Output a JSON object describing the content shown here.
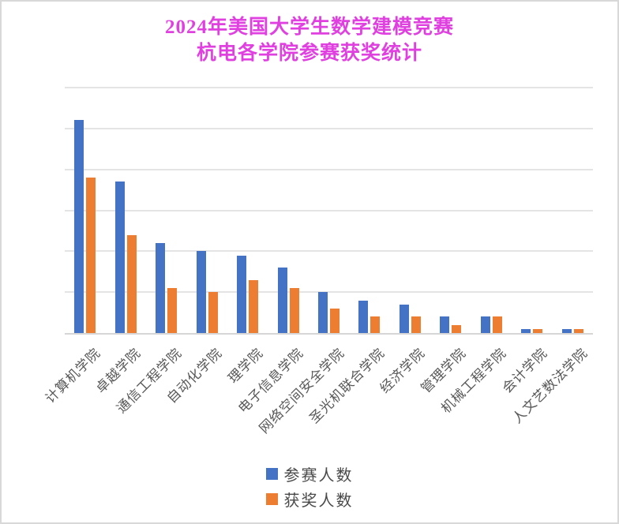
{
  "title": {
    "line1": "2024年美国大学生数学建模竞赛",
    "line2": "杭电各学院参赛获奖统计",
    "color": "#E040E0"
  },
  "chart_data": {
    "type": "bar",
    "title": "2024年美国大学生数学建模竞赛 杭电各学院参赛获奖统计",
    "categories": [
      "计算机学院",
      "卓越学院",
      "通信工程学院",
      "自动化学院",
      "理学院",
      "电子信息学院",
      "网络空间安全学院",
      "圣光机联合学院",
      "经济学院",
      "管理学院",
      "机械工程学院",
      "会计学院",
      "人文艺数法学院"
    ],
    "series": [
      {
        "name": "参赛人数",
        "color": "#4472C4",
        "values": [
          260,
          185,
          110,
          100,
          95,
          80,
          50,
          40,
          35,
          20,
          20,
          5,
          5
        ]
      },
      {
        "name": "获奖人数",
        "color": "#ED7D31",
        "values": [
          190,
          120,
          55,
          50,
          65,
          55,
          30,
          20,
          20,
          10,
          20,
          5,
          5
        ]
      }
    ],
    "xlabel": "",
    "ylabel": "",
    "ylim": [
      0,
      300
    ],
    "gridline_interval": 50,
    "y_tick_labels_visible": false,
    "grid": true,
    "legend_position": "bottom",
    "label_color": "#595959"
  },
  "legend": {
    "items": [
      {
        "label": "参赛人数",
        "color": "#4472C4"
      },
      {
        "label": "获奖人数",
        "color": "#ED7D31"
      }
    ]
  }
}
